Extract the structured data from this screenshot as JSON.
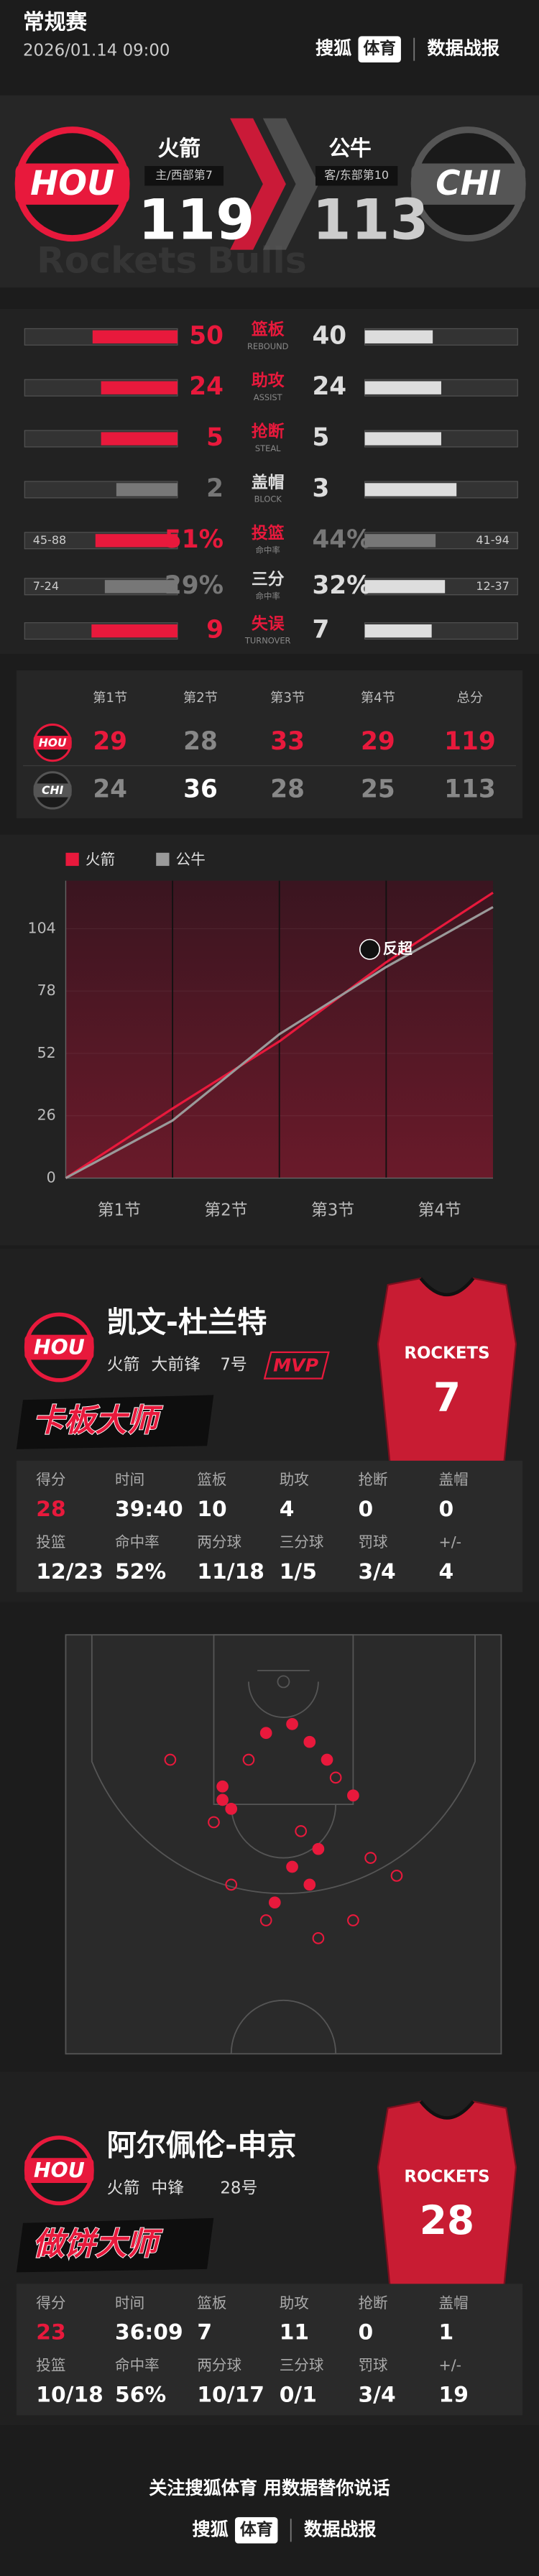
{
  "header": {
    "league": "常规赛",
    "datetime": "2026/01.14 09:00",
    "brand_left": "搜狐",
    "brand_right": "体育",
    "section": "数据战报"
  },
  "score": {
    "home": {
      "abbr": "HOU",
      "name": "火箭",
      "note": "主/西部第7",
      "score": 119,
      "watermark": "Rockets",
      "color": "#e8193c"
    },
    "away": {
      "abbr": "CHI",
      "name": "公牛",
      "note": "客/东部第10",
      "score": 113,
      "watermark": "Bulls",
      "color": "#555555"
    }
  },
  "team_stats": [
    {
      "label": "篮板",
      "label_en": "REBOUND",
      "home": 50,
      "away": 40,
      "home_color": "#e8193c",
      "away_color": "#dddddd"
    },
    {
      "label": "助攻",
      "label_en": "ASSIST",
      "home": 24,
      "away": 24,
      "home_color": "#e8193c",
      "away_color": "#dddddd"
    },
    {
      "label": "抢断",
      "label_en": "STEAL",
      "home": 5,
      "away": 5,
      "home_color": "#e8193c",
      "away_color": "#dddddd"
    },
    {
      "label": "盖帽",
      "label_en": "BLOCK",
      "home": 2,
      "away": 3,
      "home_color": "#777777",
      "away_color": "#dddddd"
    },
    {
      "label": "投篮",
      "label_en": "命中率",
      "home": {
        "value": 51,
        "label": "51%"
      },
      "away": {
        "value": 44,
        "label": "44%"
      },
      "home_detail": "45-88",
      "away_detail": "41-94",
      "home_color": "#e8193c",
      "away_color": "#777777"
    },
    {
      "label": "三分",
      "label_en": "命中率",
      "home": {
        "value": 29,
        "label": "29%"
      },
      "away": {
        "value": 32,
        "label": "32%"
      },
      "home_detail": "7-24",
      "away_detail": "12-37",
      "home_color": "#777777",
      "away_color": "#dddddd"
    },
    {
      "label": "失误",
      "label_en": "TURNOVER",
      "home": 9,
      "away": 7,
      "home_color": "#e8193c",
      "away_color": "#dddddd"
    }
  ],
  "quarters": {
    "headers": [
      "第1节",
      "第2节",
      "第3节",
      "第4节",
      "总分"
    ],
    "rows": [
      {
        "scores": [
          29,
          28,
          33,
          29,
          119
        ],
        "colors": [
          "#e8193c",
          "#888888",
          "#e8193c",
          "#e8193c",
          "#e8193c"
        ]
      },
      {
        "scores": [
          24,
          36,
          28,
          25,
          113
        ],
        "colors": [
          "#888888",
          "#ffffff",
          "#888888",
          "#888888",
          "#888888"
        ]
      }
    ]
  },
  "chart_data": {
    "type": "line",
    "x": [
      0,
      12,
      24,
      36,
      48
    ],
    "xlim": [
      0,
      48
    ],
    "categories": [
      "第1节",
      "第2节",
      "第3节",
      "第4节"
    ],
    "series": [
      {
        "name": "火箭",
        "color": "#e8193c",
        "values": [
          0,
          29,
          57,
          90,
          119
        ]
      },
      {
        "name": "公牛",
        "color": "#9a9a9a",
        "values": [
          0,
          24,
          60,
          88,
          113
        ]
      }
    ],
    "ylim": [
      0,
      124
    ],
    "yticks": [
      0,
      26,
      52,
      78,
      104
    ],
    "grid": true,
    "annotation": {
      "text": "反超",
      "x": 36,
      "y": 94
    }
  },
  "players": [
    {
      "name": "凯文-杜兰特",
      "team": "火箭",
      "position": "大前锋",
      "number": "7号",
      "badge": "MVP",
      "jersey_text": "ROCKETS",
      "jersey_number": "7",
      "title": "卡板大师",
      "accent": "#e8193c",
      "stats": [
        [
          {
            "label": "得分",
            "value": 28
          },
          {
            "label": "时间",
            "value": "39:40"
          },
          {
            "label": "篮板",
            "value": 10
          },
          {
            "label": "助攻",
            "value": 4
          },
          {
            "label": "抢断",
            "value": 0
          },
          {
            "label": "盖帽",
            "value": 0
          }
        ],
        [
          {
            "label": "投篮",
            "value": "12/23"
          },
          {
            "label": "命中率",
            "value": "52%"
          },
          {
            "label": "两分球",
            "value": "11/18"
          },
          {
            "label": "三分球",
            "value": "1/5"
          },
          {
            "label": "罚球",
            "value": "3/4"
          },
          {
            "label": "+/-",
            "value": 4
          }
        ]
      ]
    },
    {
      "name": "阿尔佩伦-申京",
      "team": "火箭",
      "position": "中锋",
      "number": "28号",
      "jersey_text": "ROCKETS",
      "jersey_number": "28",
      "title": "做饼大师",
      "accent": "#e8193c",
      "stats": [
        [
          {
            "label": "得分",
            "value": 23
          },
          {
            "label": "时间",
            "value": "36:09"
          },
          {
            "label": "篮板",
            "value": 7
          },
          {
            "label": "助攻",
            "value": 11
          },
          {
            "label": "抢断",
            "value": 0
          },
          {
            "label": "盖帽",
            "value": 1
          }
        ],
        [
          {
            "label": "投篮",
            "value": "10/18"
          },
          {
            "label": "命中率",
            "value": "56%"
          },
          {
            "label": "两分球",
            "value": "10/17"
          },
          {
            "label": "三分球",
            "value": "0/1"
          },
          {
            "label": "罚球",
            "value": "3/4"
          },
          {
            "label": "+/-",
            "value": 19
          }
        ]
      ]
    }
  ],
  "shot_chart": {
    "color": "#e8193c",
    "shots": [
      {
        "x": -2,
        "y": 11,
        "made": true
      },
      {
        "x": 1,
        "y": 10,
        "made": true
      },
      {
        "x": 3,
        "y": 12,
        "made": true
      },
      {
        "x": -7,
        "y": 17,
        "made": true
      },
      {
        "x": -7,
        "y": 18.5,
        "made": true
      },
      {
        "x": -6,
        "y": 19.5,
        "made": true
      },
      {
        "x": 8,
        "y": 18,
        "made": true
      },
      {
        "x": 1,
        "y": 26,
        "made": true
      },
      {
        "x": 3,
        "y": 28,
        "made": true
      },
      {
        "x": -1,
        "y": 30,
        "made": true
      },
      {
        "x": 5,
        "y": 14,
        "made": true
      },
      {
        "x": 4,
        "y": 24,
        "made": true
      },
      {
        "x": -13,
        "y": 14,
        "made": false
      },
      {
        "x": -4,
        "y": 14,
        "made": false
      },
      {
        "x": 6,
        "y": 16,
        "made": false
      },
      {
        "x": -8,
        "y": 21,
        "made": false
      },
      {
        "x": 2,
        "y": 22,
        "made": false
      },
      {
        "x": 10,
        "y": 25,
        "made": false
      },
      {
        "x": 13,
        "y": 27,
        "made": false
      },
      {
        "x": -2,
        "y": 32,
        "made": false
      },
      {
        "x": 8,
        "y": 32,
        "made": false
      },
      {
        "x": -6,
        "y": 28,
        "made": false
      },
      {
        "x": 4,
        "y": 34,
        "made": false
      }
    ]
  },
  "footer": {
    "slogan": "关注搜狐体育 用数据替你说话",
    "brand_left": "搜狐",
    "brand_right": "体育",
    "section": "数据战报"
  }
}
